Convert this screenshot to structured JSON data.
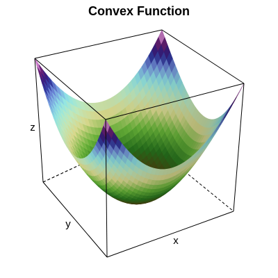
{
  "chart_data": {
    "type": "surface",
    "title": "Convex Function",
    "xlabel": "x",
    "ylabel": "y",
    "zlabel": "z",
    "function": "z = x^2 + y^2",
    "xlim": [
      -1,
      1
    ],
    "ylim": [
      -1,
      1
    ],
    "zlim": [
      0,
      2
    ],
    "grid": false,
    "legend": false,
    "colormap": "gist_ncar-like (dark brown/olive at minimum, green, yellow, cyan, violet/pink at edges)"
  }
}
